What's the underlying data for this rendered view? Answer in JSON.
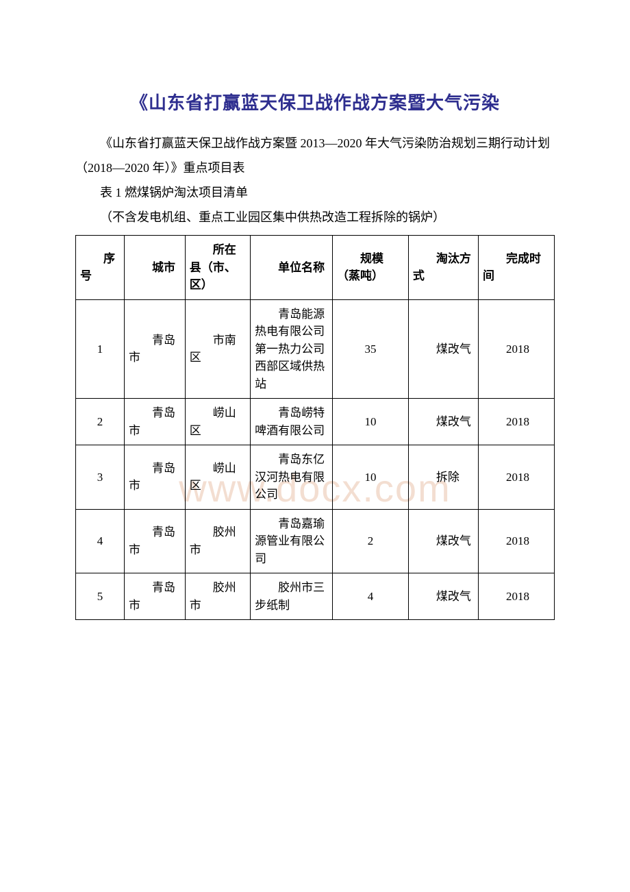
{
  "watermark_text": "www.docx.com",
  "title": "《山东省打赢蓝天保卫战作战方案暨大气污染",
  "paragraphs": [
    "《山东省打赢蓝天保卫战作战方案暨 2013—2020 年大气污染防治规划三期行动计划（2018—2020 年）》重点项目表",
    "表 1 燃煤锅炉淘汰项目清单",
    "（不含发电机组、重点工业园区集中供热改造工程拆除的锅炉）"
  ],
  "table": {
    "headers": [
      "序号",
      "城市",
      "所在县（市、区）",
      "单位名称",
      "规模（蒸吨）",
      "淘汰方式",
      "完成时间"
    ],
    "rows": [
      [
        "1",
        "青岛市",
        "市南区",
        "青岛能源热电有限公司第一热力公司西部区域供热站",
        "35",
        "煤改气",
        "2018"
      ],
      [
        "2",
        "青岛市",
        "崂山区",
        "青岛崂特啤酒有限公司",
        "10",
        "煤改气",
        "2018"
      ],
      [
        "3",
        "青岛市",
        "崂山区",
        "青岛东亿汉河热电有限公司",
        "10",
        "拆除",
        "2018"
      ],
      [
        "4",
        "青岛市",
        "胶州市",
        "青岛嘉瑜源管业有限公司",
        "2",
        "煤改气",
        "2018"
      ],
      [
        "5",
        "青岛市",
        "胶州市",
        "胶州市三步纸制",
        "4",
        "煤改气",
        "2018"
      ]
    ]
  },
  "colors": {
    "title": "#2e2e8f",
    "text": "#000000",
    "watermark": "#f3ded1",
    "border": "#000000",
    "background": "#ffffff"
  }
}
